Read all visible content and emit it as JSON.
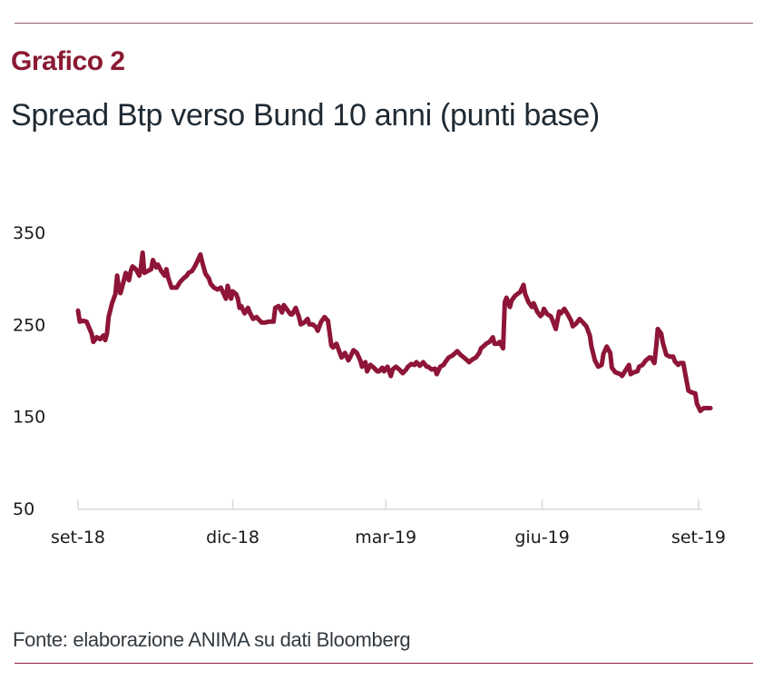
{
  "header": {
    "kicker": "Grafico 2",
    "title": "Spread Btp verso Bund 10 anni (punti base)"
  },
  "footer": {
    "source": "Fonte: elaborazione ANIMA su dati Bloomberg"
  },
  "colors": {
    "accent": "#8a1a33",
    "line": "#8e1537",
    "axis": "#d9d9d9",
    "rule": "#8c1c3c"
  },
  "chart_data": {
    "type": "line",
    "title": "Spread Btp verso Bund 10 anni (punti base)",
    "xlabel": "",
    "ylabel": "",
    "ylim": [
      50,
      350
    ],
    "yticks": [
      50,
      150,
      250,
      350
    ],
    "ytick_labels": [
      "50",
      "150",
      "250",
      "350"
    ],
    "xlim": [
      "2018-09-01",
      "2019-09-01"
    ],
    "xticks": [
      "2018-09-01",
      "2018-12-01",
      "2019-03-01",
      "2019-06-01",
      "2019-09-01"
    ],
    "xtick_labels": [
      "set-18",
      "dic-18",
      "mar-19",
      "giu-19",
      "set-19"
    ],
    "grid": false,
    "legend": "none",
    "series": [
      {
        "name": "Spread Btp-Bund 10 anni",
        "points": [
          [
            "2018-09-01",
            265
          ],
          [
            "2018-09-02",
            253
          ],
          [
            "2018-09-04",
            254
          ],
          [
            "2018-09-06",
            253
          ],
          [
            "2018-09-09",
            240
          ],
          [
            "2018-09-10",
            231
          ],
          [
            "2018-09-12",
            236
          ],
          [
            "2018-09-14",
            234
          ],
          [
            "2018-09-16",
            238
          ],
          [
            "2018-09-17",
            233
          ],
          [
            "2018-09-18",
            240
          ],
          [
            "2018-09-19",
            258
          ],
          [
            "2018-09-21",
            273
          ],
          [
            "2018-09-23",
            283
          ],
          [
            "2018-09-24",
            303
          ],
          [
            "2018-09-25",
            290
          ],
          [
            "2018-09-26",
            284
          ],
          [
            "2018-09-28",
            298
          ],
          [
            "2018-09-29",
            306
          ],
          [
            "2018-10-01",
            298
          ],
          [
            "2018-10-02",
            308
          ],
          [
            "2018-10-03",
            313
          ],
          [
            "2018-10-05",
            310
          ],
          [
            "2018-10-07",
            303
          ],
          [
            "2018-10-08",
            312
          ],
          [
            "2018-10-09",
            328
          ],
          [
            "2018-10-10",
            306
          ],
          [
            "2018-10-12",
            308
          ],
          [
            "2018-10-14",
            310
          ],
          [
            "2018-10-15",
            320
          ],
          [
            "2018-10-17",
            312
          ],
          [
            "2018-10-18",
            315
          ],
          [
            "2018-10-20",
            308
          ],
          [
            "2018-10-22",
            303
          ],
          [
            "2018-10-23",
            310
          ],
          [
            "2018-10-24",
            301
          ],
          [
            "2018-10-26",
            290
          ],
          [
            "2018-10-28",
            290
          ],
          [
            "2018-10-29",
            290
          ],
          [
            "2018-10-31",
            296
          ],
          [
            "2018-11-02",
            300
          ],
          [
            "2018-11-04",
            303
          ],
          [
            "2018-11-05",
            306
          ],
          [
            "2018-11-07",
            308
          ],
          [
            "2018-11-09",
            314
          ],
          [
            "2018-11-10",
            318
          ],
          [
            "2018-11-12",
            326
          ],
          [
            "2018-11-13",
            318
          ],
          [
            "2018-11-15",
            305
          ],
          [
            "2018-11-17",
            300
          ],
          [
            "2018-11-18",
            294
          ],
          [
            "2018-11-20",
            290
          ],
          [
            "2018-11-22",
            288
          ],
          [
            "2018-11-24",
            290
          ],
          [
            "2018-11-26",
            282
          ],
          [
            "2018-11-27",
            278
          ],
          [
            "2018-11-28",
            292
          ],
          [
            "2018-11-30",
            278
          ],
          [
            "2018-12-01",
            286
          ],
          [
            "2018-12-03",
            283
          ],
          [
            "2018-12-04",
            278
          ],
          [
            "2018-12-05",
            268
          ],
          [
            "2018-12-06",
            270
          ],
          [
            "2018-12-08",
            262
          ],
          [
            "2018-12-10",
            268
          ],
          [
            "2018-12-11",
            263
          ],
          [
            "2018-12-13",
            256
          ],
          [
            "2018-12-15",
            258
          ],
          [
            "2018-12-16",
            256
          ],
          [
            "2018-12-18",
            252
          ],
          [
            "2018-12-20",
            252
          ],
          [
            "2018-12-22",
            253
          ],
          [
            "2018-12-25",
            253
          ],
          [
            "2018-12-26",
            268
          ],
          [
            "2018-12-28",
            270
          ],
          [
            "2018-12-30",
            263
          ],
          [
            "2018-12-31",
            271
          ],
          [
            "2019-01-02",
            266
          ],
          [
            "2019-01-04",
            261
          ],
          [
            "2019-01-05",
            261
          ],
          [
            "2019-01-07",
            268
          ],
          [
            "2019-01-09",
            258
          ],
          [
            "2019-01-10",
            250
          ],
          [
            "2019-01-12",
            252
          ],
          [
            "2019-01-14",
            256
          ],
          [
            "2019-01-15",
            250
          ],
          [
            "2019-01-17",
            250
          ],
          [
            "2019-01-19",
            247
          ],
          [
            "2019-01-20",
            243
          ],
          [
            "2019-01-22",
            253
          ],
          [
            "2019-01-24",
            258
          ],
          [
            "2019-01-25",
            256
          ],
          [
            "2019-01-26",
            254
          ],
          [
            "2019-01-28",
            227
          ],
          [
            "2019-01-29",
            225
          ],
          [
            "2019-01-31",
            229
          ],
          [
            "2019-02-02",
            219
          ],
          [
            "2019-02-03",
            214
          ],
          [
            "2019-02-05",
            219
          ],
          [
            "2019-02-07",
            211
          ],
          [
            "2019-02-08",
            214
          ],
          [
            "2019-02-10",
            222
          ],
          [
            "2019-02-12",
            219
          ],
          [
            "2019-02-14",
            211
          ],
          [
            "2019-02-15",
            204
          ],
          [
            "2019-02-17",
            209
          ],
          [
            "2019-02-18",
            199
          ],
          [
            "2019-02-20",
            206
          ],
          [
            "2019-02-22",
            203
          ],
          [
            "2019-02-24",
            199
          ],
          [
            "2019-02-25",
            199
          ],
          [
            "2019-02-27",
            203
          ],
          [
            "2019-02-28",
            199
          ],
          [
            "2019-03-02",
            204
          ],
          [
            "2019-03-04",
            194
          ],
          [
            "2019-03-05",
            201
          ],
          [
            "2019-03-07",
            204
          ],
          [
            "2019-03-09",
            201
          ],
          [
            "2019-03-11",
            197
          ],
          [
            "2019-03-13",
            201
          ],
          [
            "2019-03-14",
            204
          ],
          [
            "2019-03-16",
            207
          ],
          [
            "2019-03-18",
            206
          ],
          [
            "2019-03-19",
            209
          ],
          [
            "2019-03-21",
            205
          ],
          [
            "2019-03-23",
            209
          ],
          [
            "2019-03-25",
            204
          ],
          [
            "2019-03-26",
            204
          ],
          [
            "2019-03-28",
            201
          ],
          [
            "2019-03-30",
            202
          ],
          [
            "2019-03-31",
            196
          ],
          [
            "2019-04-02",
            204
          ],
          [
            "2019-04-04",
            206
          ],
          [
            "2019-04-05",
            209
          ],
          [
            "2019-04-07",
            214
          ],
          [
            "2019-04-09",
            216
          ],
          [
            "2019-04-11",
            219
          ],
          [
            "2019-04-12",
            221
          ],
          [
            "2019-04-14",
            217
          ],
          [
            "2019-04-16",
            214
          ],
          [
            "2019-04-18",
            211
          ],
          [
            "2019-04-19",
            209
          ],
          [
            "2019-04-21",
            212
          ],
          [
            "2019-04-23",
            214
          ],
          [
            "2019-04-25",
            219
          ],
          [
            "2019-04-26",
            224
          ],
          [
            "2019-04-28",
            227
          ],
          [
            "2019-04-29",
            229
          ],
          [
            "2019-05-01",
            231
          ],
          [
            "2019-05-03",
            236
          ],
          [
            "2019-05-04",
            229
          ],
          [
            "2019-05-06",
            229
          ],
          [
            "2019-05-07",
            231
          ],
          [
            "2019-05-09",
            224
          ],
          [
            "2019-05-10",
            274
          ],
          [
            "2019-05-11",
            279
          ],
          [
            "2019-05-13",
            269
          ],
          [
            "2019-05-14",
            276
          ],
          [
            "2019-05-16",
            281
          ],
          [
            "2019-05-18",
            284
          ],
          [
            "2019-05-19",
            285
          ],
          [
            "2019-05-21",
            293
          ],
          [
            "2019-05-22",
            283
          ],
          [
            "2019-05-24",
            274
          ],
          [
            "2019-05-26",
            269
          ],
          [
            "2019-05-27",
            273
          ],
          [
            "2019-05-29",
            264
          ],
          [
            "2019-05-31",
            259
          ],
          [
            "2019-06-01",
            261
          ],
          [
            "2019-06-02",
            267
          ],
          [
            "2019-06-04",
            261
          ],
          [
            "2019-06-06",
            259
          ],
          [
            "2019-06-07",
            255
          ],
          [
            "2019-06-09",
            245
          ],
          [
            "2019-06-11",
            264
          ],
          [
            "2019-06-12",
            262
          ],
          [
            "2019-06-14",
            267
          ],
          [
            "2019-06-16",
            261
          ],
          [
            "2019-06-18",
            254
          ],
          [
            "2019-06-19",
            248
          ],
          [
            "2019-06-21",
            251
          ],
          [
            "2019-06-23",
            256
          ],
          [
            "2019-06-25",
            252
          ],
          [
            "2019-06-27",
            248
          ],
          [
            "2019-06-29",
            238
          ],
          [
            "2019-06-30",
            226
          ],
          [
            "2019-07-02",
            211
          ],
          [
            "2019-07-04",
            204
          ],
          [
            "2019-07-06",
            206
          ],
          [
            "2019-07-07",
            218
          ],
          [
            "2019-07-09",
            226
          ],
          [
            "2019-07-11",
            219
          ],
          [
            "2019-07-12",
            203
          ],
          [
            "2019-07-14",
            198
          ],
          [
            "2019-07-17",
            196
          ],
          [
            "2019-07-18",
            194
          ],
          [
            "2019-07-20",
            200
          ],
          [
            "2019-07-22",
            206
          ],
          [
            "2019-07-23",
            196
          ],
          [
            "2019-07-25",
            198
          ],
          [
            "2019-07-27",
            199
          ],
          [
            "2019-07-28",
            204
          ],
          [
            "2019-07-30",
            206
          ],
          [
            "2019-08-01",
            211
          ],
          [
            "2019-08-03",
            214
          ],
          [
            "2019-08-04",
            214
          ],
          [
            "2019-08-06",
            208
          ],
          [
            "2019-08-07",
            225
          ],
          [
            "2019-08-08",
            245
          ],
          [
            "2019-08-10",
            240
          ],
          [
            "2019-08-11",
            230
          ],
          [
            "2019-08-13",
            217
          ],
          [
            "2019-08-15",
            215
          ],
          [
            "2019-08-17",
            215
          ],
          [
            "2019-08-18",
            210
          ],
          [
            "2019-08-20",
            206
          ],
          [
            "2019-08-21",
            208
          ],
          [
            "2019-08-23",
            208
          ],
          [
            "2019-08-25",
            188
          ],
          [
            "2019-08-26",
            178
          ],
          [
            "2019-08-28",
            176
          ],
          [
            "2019-08-30",
            175
          ],
          [
            "2019-08-31",
            164
          ],
          [
            "2019-09-02",
            156
          ],
          [
            "2019-09-04",
            159
          ],
          [
            "2019-09-06",
            159
          ],
          [
            "2019-09-08",
            159
          ]
        ]
      }
    ]
  }
}
